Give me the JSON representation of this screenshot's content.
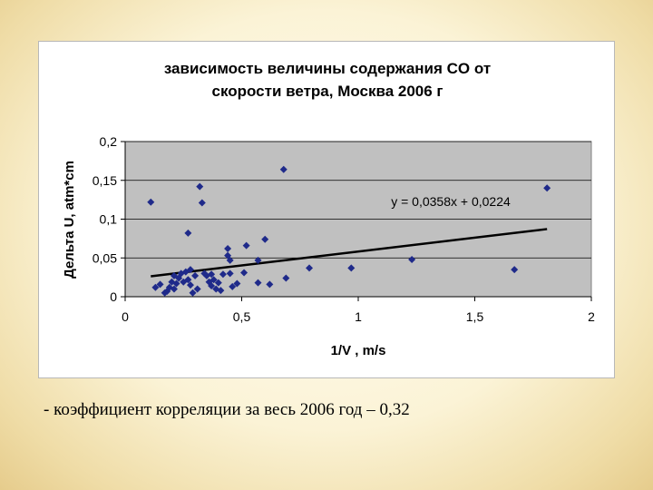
{
  "chart_data": {
    "type": "scatter",
    "title_lines": [
      "зависимость величины  содержания CO от",
      "скорости ветра, Москва 2006 г"
    ],
    "xlabel": "1/V , m/s",
    "ylabel": "Дельта U, atm*cm",
    "xlim": [
      0,
      2
    ],
    "ylim": [
      0,
      0.2
    ],
    "x_ticks": [
      "0",
      "0,5",
      "1",
      "1,5",
      "2"
    ],
    "y_ticks": [
      "0",
      "0,05",
      "0,1",
      "0,15",
      "0,2"
    ],
    "grid": "horizontal",
    "trendline": {
      "label": "y = 0,0358x + 0,0224",
      "slope": 0.0358,
      "intercept": 0.0224,
      "x_range": [
        0.11,
        1.81
      ]
    },
    "marker_color": "#1f2a8a",
    "plot_bg": "#c0c0c0",
    "points": [
      [
        0.11,
        0.122
      ],
      [
        0.13,
        0.012
      ],
      [
        0.15,
        0.016
      ],
      [
        0.17,
        0.005
      ],
      [
        0.18,
        0.007
      ],
      [
        0.19,
        0.012
      ],
      [
        0.2,
        0.019
      ],
      [
        0.21,
        0.027
      ],
      [
        0.21,
        0.01
      ],
      [
        0.22,
        0.017
      ],
      [
        0.23,
        0.024
      ],
      [
        0.24,
        0.03
      ],
      [
        0.25,
        0.019
      ],
      [
        0.26,
        0.032
      ],
      [
        0.27,
        0.082
      ],
      [
        0.27,
        0.022
      ],
      [
        0.28,
        0.035
      ],
      [
        0.28,
        0.015
      ],
      [
        0.29,
        0.005
      ],
      [
        0.3,
        0.027
      ],
      [
        0.31,
        0.01
      ],
      [
        0.32,
        0.142
      ],
      [
        0.33,
        0.121
      ],
      [
        0.34,
        0.03
      ],
      [
        0.35,
        0.027
      ],
      [
        0.36,
        0.019
      ],
      [
        0.37,
        0.014
      ],
      [
        0.37,
        0.029
      ],
      [
        0.38,
        0.022
      ],
      [
        0.39,
        0.01
      ],
      [
        0.4,
        0.018
      ],
      [
        0.41,
        0.008
      ],
      [
        0.42,
        0.029
      ],
      [
        0.44,
        0.062
      ],
      [
        0.44,
        0.053
      ],
      [
        0.45,
        0.047
      ],
      [
        0.45,
        0.03
      ],
      [
        0.46,
        0.013
      ],
      [
        0.48,
        0.017
      ],
      [
        0.51,
        0.031
      ],
      [
        0.52,
        0.066
      ],
      [
        0.57,
        0.047
      ],
      [
        0.57,
        0.018
      ],
      [
        0.6,
        0.074
      ],
      [
        0.62,
        0.016
      ],
      [
        0.68,
        0.164
      ],
      [
        0.69,
        0.024
      ],
      [
        0.79,
        0.037
      ],
      [
        0.97,
        0.037
      ],
      [
        1.23,
        0.048
      ],
      [
        1.67,
        0.035
      ],
      [
        1.81,
        0.14
      ]
    ]
  },
  "caption": "- коэффициент корреляции за весь 2006 год – 0,32"
}
